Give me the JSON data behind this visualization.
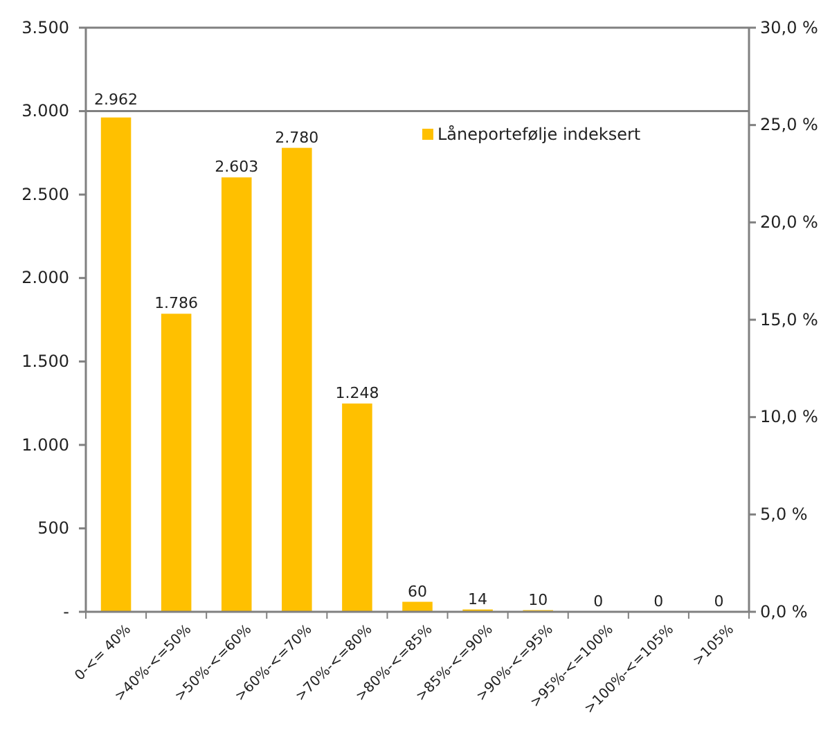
{
  "chart_data": {
    "type": "bar",
    "categories": [
      "0-<= 40%",
      ">40%-<=50%",
      ">50%-<=60%",
      ">60%-<=70%",
      ">70%-<=80%",
      ">80%-<=85%",
      ">85%-<=90%",
      ">90%-<=95%",
      ">95%-<=100%",
      ">100%-<=105%",
      ">105%"
    ],
    "series": [
      {
        "name": "Låneportefølje indeksert",
        "color": "#ffc000",
        "values": [
          2962,
          1786,
          2603,
          2780,
          1248,
          60,
          14,
          10,
          0,
          0,
          0
        ],
        "value_labels": [
          "2.962",
          "1.786",
          "2.603",
          "2.780",
          "1.248",
          "60",
          "14",
          "10",
          "0",
          "0",
          "0"
        ]
      }
    ],
    "ylim": [
      0,
      3500
    ],
    "yticks": [
      {
        "value": 0,
        "label": "-"
      },
      {
        "value": 500,
        "label": "500"
      },
      {
        "value": 1000,
        "label": "1.000"
      },
      {
        "value": 1500,
        "label": "1.500"
      },
      {
        "value": 2000,
        "label": "2.000"
      },
      {
        "value": 2500,
        "label": "2.500"
      },
      {
        "value": 3000,
        "label": "3.000"
      },
      {
        "value": 3500,
        "label": "3.500"
      }
    ],
    "y2lim": [
      0,
      30
    ],
    "y2ticks": [
      {
        "value": 0,
        "label": "0,0 %"
      },
      {
        "value": 5,
        "label": "5,0 %"
      },
      {
        "value": 10,
        "label": "10,0 %"
      },
      {
        "value": 15,
        "label": "15,0 %"
      },
      {
        "value": 20,
        "label": "20,0 %"
      },
      {
        "value": 25,
        "label": "25,0 %"
      },
      {
        "value": 30,
        "label": "30,0 %"
      }
    ],
    "ref_lines": [
      {
        "axis": "y",
        "value": 3000,
        "color": "#808080"
      }
    ],
    "legend": "top right"
  }
}
